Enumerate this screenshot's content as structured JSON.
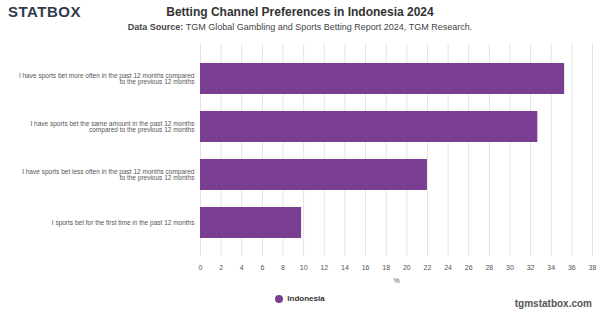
{
  "chart_data": {
    "type": "bar",
    "title": "Betting Channel Preferences in Indonesia 2024",
    "subtitle": "Data Source: TGM Global Gambling and Sports Betting Report 2024, TGM Research.",
    "logo": "STATBOX",
    "credit": "tgmstatbox.com",
    "x_label": "%",
    "orientation": "horizontal",
    "categories": [
      "I have sports bet more often in the past 12 months compared to the previous 12 months",
      "I have sports bet the same amount in the past 12 months compared to the previous 12 months",
      "I have sports bet less often in the past 12 months compared to the previous 12 months",
      "I sports bet for the first time in the past 12 months"
    ],
    "series": [
      {
        "name": "Indonesia",
        "color": "#7a3e93",
        "values": [
          35.3,
          32.7,
          22.0,
          9.8
        ]
      }
    ],
    "xlim": [
      0,
      38
    ],
    "xticks": [
      0,
      2,
      4,
      6,
      8,
      10,
      12,
      14,
      16,
      18,
      20,
      22,
      24,
      26,
      28,
      30,
      32,
      34,
      36,
      38
    ],
    "grid": true,
    "legend": "bottom"
  }
}
